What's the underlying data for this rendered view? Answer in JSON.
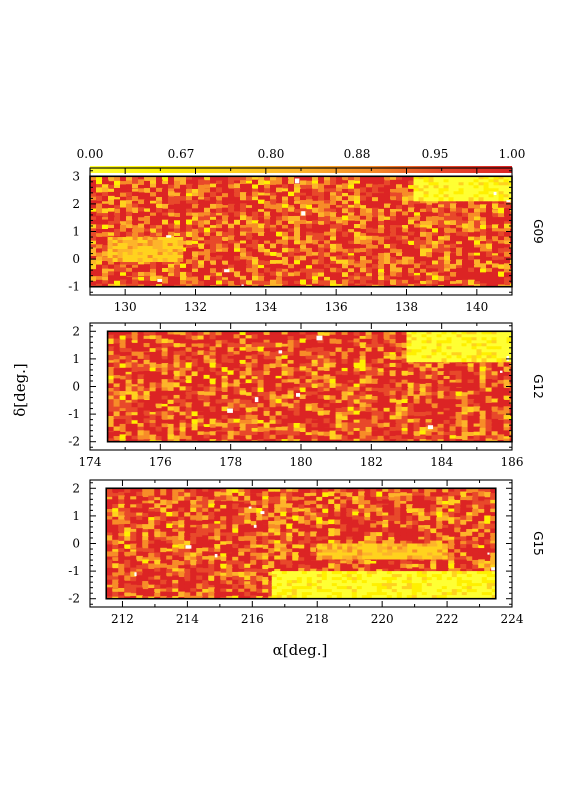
{
  "chart_data": {
    "type": "heatmap",
    "colorbar": {
      "ticks": [
        "0.00",
        "0.67",
        "0.80",
        "0.88",
        "0.95",
        "1.00"
      ],
      "colors": [
        "#ffff33",
        "#fff000",
        "#ffd21e",
        "#fdb42a",
        "#f78c28",
        "#e8492a",
        "#dc2424"
      ]
    },
    "xlabel": "α[deg.]",
    "ylabel": "δ[deg.]",
    "panels": [
      {
        "field": "G09",
        "xlim": [
          129,
          141
        ],
        "ylim": [
          -1.3,
          3.3
        ],
        "data_x": [
          129,
          141
        ],
        "data_y": [
          -1,
          3
        ],
        "xticks": [
          "130",
          "132",
          "134",
          "136",
          "138",
          "140"
        ],
        "yticks": [
          "-1",
          "0",
          "1",
          "2",
          "3"
        ],
        "regions": [
          {
            "x": [
              138.2,
              141
            ],
            "y": [
              2.2,
              3
            ],
            "level": 0
          },
          {
            "x": [
              129.5,
              131.5
            ],
            "y": [
              0,
              0.8
            ],
            "level": 2
          }
        ]
      },
      {
        "field": "G12",
        "xlim": [
          174,
          186
        ],
        "ylim": [
          -2.3,
          2.3
        ],
        "data_x": [
          174.5,
          186
        ],
        "data_y": [
          -2,
          2
        ],
        "xticks": [
          "174",
          "176",
          "178",
          "180",
          "182",
          "184",
          "186"
        ],
        "yticks": [
          "-2",
          "-1",
          "0",
          "1",
          "2"
        ],
        "regions": [
          {
            "x": [
              183,
              186
            ],
            "y": [
              1,
              2
            ],
            "level": 0
          }
        ]
      },
      {
        "field": "G15",
        "xlim": [
          211,
          224
        ],
        "ylim": [
          -2.3,
          2.3
        ],
        "data_x": [
          211.5,
          223.5
        ],
        "data_y": [
          -2,
          2
        ],
        "xticks": [
          "212",
          "214",
          "216",
          "218",
          "220",
          "222",
          "224"
        ],
        "yticks": [
          "-2",
          "-1",
          "0",
          "1",
          "2"
        ],
        "regions": [
          {
            "x": [
              216.6,
              223.5
            ],
            "y": [
              -2,
              -1
            ],
            "level": 0
          },
          {
            "x": [
              218,
              222
            ],
            "y": [
              -0.5,
              0
            ],
            "level": 2
          }
        ]
      }
    ]
  }
}
